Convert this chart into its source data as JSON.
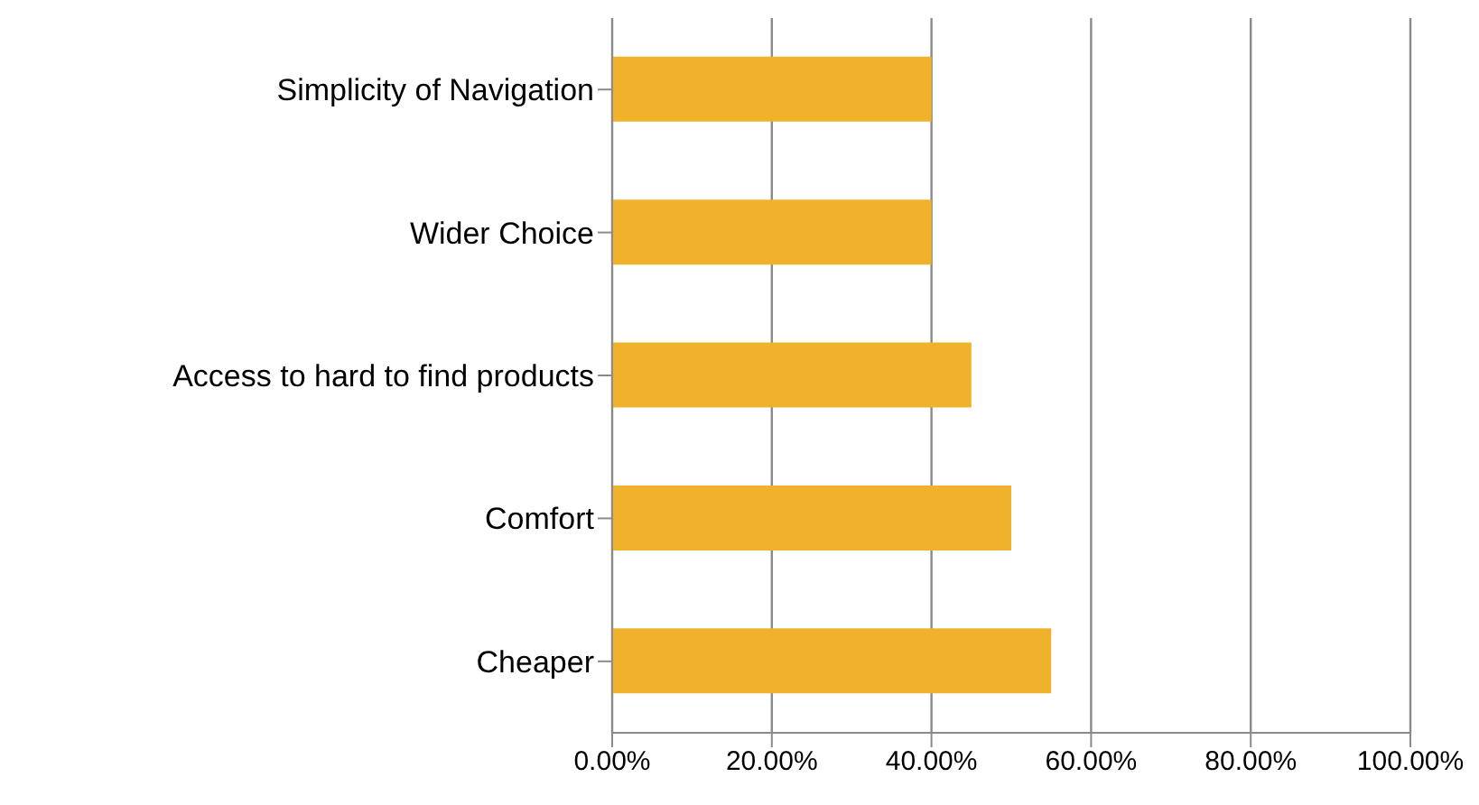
{
  "chart_data": {
    "type": "bar",
    "orientation": "horizontal",
    "categories": [
      "Simplicity of Navigation",
      "Wider Choice",
      "Access to hard to find products",
      "Comfort",
      "Cheaper"
    ],
    "values": [
      40,
      40,
      45,
      50,
      55
    ],
    "color": "#f0b22a",
    "xlim": [
      0,
      100
    ],
    "xticks": [
      {
        "value": 0,
        "label": "0.00%"
      },
      {
        "value": 20,
        "label": "20.00%"
      },
      {
        "value": 40,
        "label": "40.00%"
      },
      {
        "value": 60,
        "label": "60.00%"
      },
      {
        "value": 80,
        "label": "80.00%"
      },
      {
        "value": 100,
        "label": "100.00%"
      }
    ],
    "grid": "x",
    "legend": false
  }
}
